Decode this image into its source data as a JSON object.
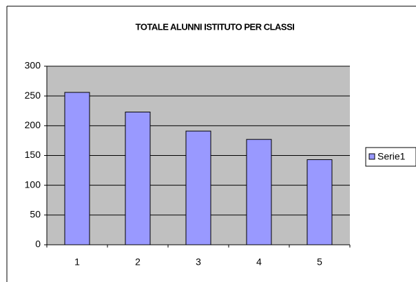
{
  "chart_data": {
    "type": "bar",
    "title": "TOTALE ALUNNI ISTITUTO PER CLASSI",
    "categories": [
      "1",
      "2",
      "3",
      "4",
      "5"
    ],
    "series": [
      {
        "name": "Serie1",
        "color": "#9999ff",
        "values": [
          256,
          223,
          191,
          177,
          143
        ]
      }
    ],
    "ylim": [
      0,
      300
    ],
    "yticks": [
      0,
      50,
      100,
      150,
      200,
      250,
      300
    ],
    "grid": true,
    "legend": "right"
  }
}
